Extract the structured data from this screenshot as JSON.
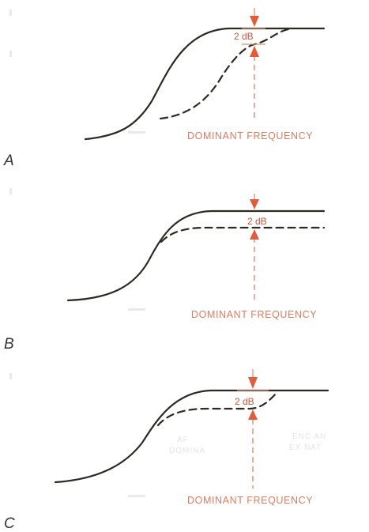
{
  "panels": [
    {
      "id": "A",
      "letter": "A",
      "db_label": "2 dB",
      "frequency_label": "DOMINANT FREQUENCY",
      "faint_labels": []
    },
    {
      "id": "B",
      "letter": "B",
      "db_label": "2 dB",
      "frequency_label": "DOMINANT FREQUENCY",
      "faint_labels": []
    },
    {
      "id": "C",
      "letter": "C",
      "db_label": "2 dB",
      "frequency_label": "DOMINANT FREQUENCY",
      "faint_labels": [
        "AF",
        "DOMINA",
        "ENC AN",
        "EX NAT"
      ]
    }
  ],
  "colors": {
    "curve": "#2b2b22",
    "annotation": "#e35c3a",
    "annotation_text": "#e07b61"
  }
}
